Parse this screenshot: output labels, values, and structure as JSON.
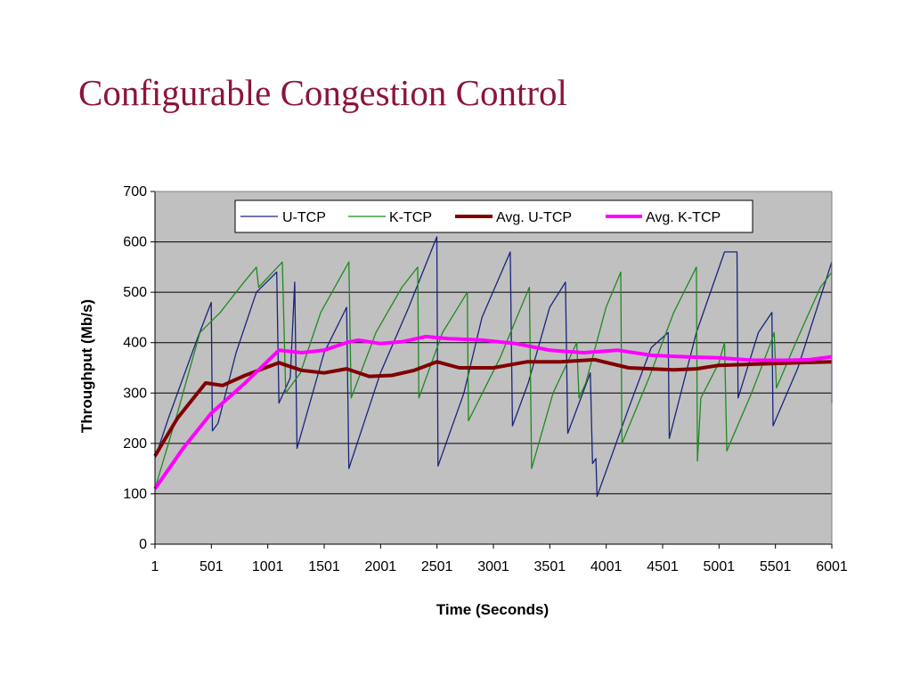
{
  "slide": {
    "title": "Configurable Congestion Control"
  },
  "chart_data": {
    "type": "line",
    "title": "",
    "xlabel": "Time (Seconds)",
    "ylabel": "Throughput (Mb/s)",
    "xlim": [
      1,
      6001
    ],
    "ylim": [
      0,
      700
    ],
    "x_ticks": [
      1,
      501,
      1001,
      1501,
      2001,
      2501,
      3001,
      3501,
      4001,
      4501,
      5001,
      5501,
      6001
    ],
    "y_ticks": [
      0,
      100,
      200,
      300,
      400,
      500,
      600,
      700
    ],
    "grid": "horizontal",
    "plot_background": "#c0c0c0",
    "legend_placement": "top-center",
    "series": [
      {
        "name": "U-TCP",
        "color": "#1a237e",
        "width": 1.3,
        "points": [
          [
            1,
            170
          ],
          [
            120,
            250
          ],
          [
            250,
            330
          ],
          [
            380,
            410
          ],
          [
            500,
            480
          ],
          [
            510,
            225
          ],
          [
            560,
            240
          ],
          [
            720,
            380
          ],
          [
            900,
            500
          ],
          [
            1080,
            540
          ],
          [
            1100,
            280
          ],
          [
            1200,
            330
          ],
          [
            1240,
            520
          ],
          [
            1260,
            190
          ],
          [
            1500,
            380
          ],
          [
            1700,
            470
          ],
          [
            1720,
            150
          ],
          [
            2000,
            340
          ],
          [
            2250,
            470
          ],
          [
            2500,
            610
          ],
          [
            2510,
            155
          ],
          [
            2740,
            300
          ],
          [
            2900,
            450
          ],
          [
            3150,
            580
          ],
          [
            3170,
            235
          ],
          [
            3310,
            320
          ],
          [
            3500,
            470
          ],
          [
            3640,
            520
          ],
          [
            3660,
            220
          ],
          [
            3860,
            340
          ],
          [
            3880,
            160
          ],
          [
            3910,
            170
          ],
          [
            3920,
            95
          ],
          [
            4200,
            270
          ],
          [
            4400,
            390
          ],
          [
            4550,
            420
          ],
          [
            4560,
            210
          ],
          [
            4800,
            420
          ],
          [
            5050,
            580
          ],
          [
            5160,
            580
          ],
          [
            5170,
            290
          ],
          [
            5350,
            420
          ],
          [
            5470,
            460
          ],
          [
            5480,
            235
          ],
          [
            5700,
            350
          ],
          [
            6000,
            560
          ],
          [
            6001,
            280
          ]
        ]
      },
      {
        "name": "K-TCP",
        "color": "#1f8a1f",
        "width": 1.3,
        "points": [
          [
            1,
            110
          ],
          [
            200,
            260
          ],
          [
            400,
            420
          ],
          [
            580,
            460
          ],
          [
            790,
            520
          ],
          [
            900,
            550
          ],
          [
            920,
            510
          ],
          [
            1130,
            560
          ],
          [
            1160,
            300
          ],
          [
            1290,
            340
          ],
          [
            1470,
            460
          ],
          [
            1720,
            560
          ],
          [
            1740,
            290
          ],
          [
            1960,
            420
          ],
          [
            2190,
            510
          ],
          [
            2330,
            550
          ],
          [
            2340,
            290
          ],
          [
            2550,
            420
          ],
          [
            2770,
            500
          ],
          [
            2780,
            245
          ],
          [
            3060,
            370
          ],
          [
            3320,
            510
          ],
          [
            3340,
            150
          ],
          [
            3530,
            300
          ],
          [
            3740,
            400
          ],
          [
            3760,
            290
          ],
          [
            3820,
            320
          ],
          [
            4000,
            470
          ],
          [
            4130,
            540
          ],
          [
            4140,
            200
          ],
          [
            4380,
            330
          ],
          [
            4600,
            460
          ],
          [
            4800,
            550
          ],
          [
            4810,
            165
          ],
          [
            4840,
            290
          ],
          [
            5000,
            360
          ],
          [
            5050,
            400
          ],
          [
            5070,
            185
          ],
          [
            5290,
            300
          ],
          [
            5460,
            400
          ],
          [
            5490,
            420
          ],
          [
            5510,
            310
          ],
          [
            5700,
            410
          ],
          [
            5900,
            510
          ],
          [
            6001,
            540
          ]
        ]
      },
      {
        "name": "Avg. U-TCP",
        "color": "#800000",
        "width": 4,
        "points": [
          [
            1,
            175
          ],
          [
            200,
            250
          ],
          [
            450,
            320
          ],
          [
            600,
            315
          ],
          [
            800,
            335
          ],
          [
            1100,
            360
          ],
          [
            1300,
            345
          ],
          [
            1500,
            340
          ],
          [
            1700,
            348
          ],
          [
            1900,
            333
          ],
          [
            2100,
            335
          ],
          [
            2300,
            345
          ],
          [
            2500,
            362
          ],
          [
            2700,
            350
          ],
          [
            3000,
            350
          ],
          [
            3300,
            362
          ],
          [
            3600,
            362
          ],
          [
            3900,
            366
          ],
          [
            4200,
            350
          ],
          [
            4600,
            346
          ],
          [
            4800,
            348
          ],
          [
            5000,
            355
          ],
          [
            5400,
            358
          ],
          [
            5700,
            360
          ],
          [
            6001,
            362
          ]
        ]
      },
      {
        "name": "Avg. K-TCP",
        "color": "#ff00ff",
        "width": 4,
        "points": [
          [
            1,
            110
          ],
          [
            250,
            190
          ],
          [
            500,
            260
          ],
          [
            800,
            320
          ],
          [
            1100,
            385
          ],
          [
            1300,
            380
          ],
          [
            1500,
            385
          ],
          [
            1700,
            400
          ],
          [
            1800,
            405
          ],
          [
            2000,
            398
          ],
          [
            2200,
            402
          ],
          [
            2400,
            412
          ],
          [
            2600,
            408
          ],
          [
            2900,
            405
          ],
          [
            3200,
            398
          ],
          [
            3500,
            385
          ],
          [
            3800,
            380
          ],
          [
            4100,
            385
          ],
          [
            4400,
            375
          ],
          [
            4700,
            372
          ],
          [
            5000,
            370
          ],
          [
            5300,
            365
          ],
          [
            5600,
            365
          ],
          [
            5800,
            366
          ],
          [
            6001,
            372
          ]
        ]
      }
    ]
  }
}
